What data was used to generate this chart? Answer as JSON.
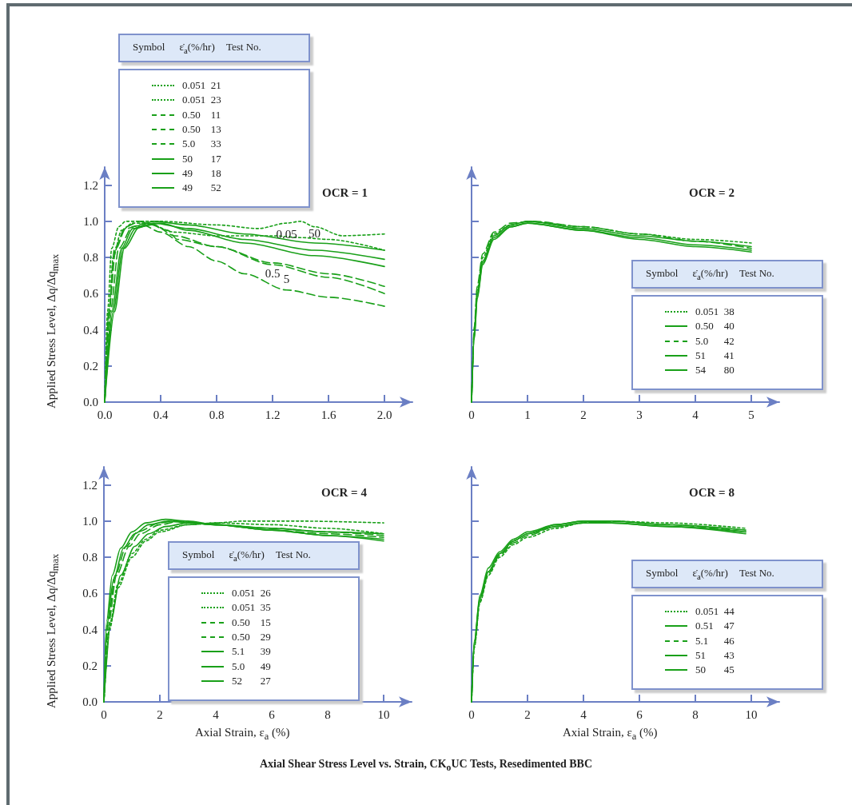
{
  "chart_data": [
    {
      "type": "line",
      "title": "OCR = 1",
      "ylabel": "Applied Stress Level, Δq/Δq$_{max}$",
      "legend": "top left",
      "legend_title": "Symbol\tε̇$_{a}$(%/hr)\tTest No.",
      "grid": false,
      "marker": "none",
      "xlim": [
        0,
        2.2
      ],
      "xticks": [
        {
          "value": 0,
          "label": "0.0"
        },
        {
          "value": 0.4,
          "label": "0.4"
        },
        {
          "value": 0.8,
          "label": "0.8"
        },
        {
          "value": 1.2,
          "label": "1.2"
        },
        {
          "value": 1.6,
          "label": "1.6"
        },
        {
          "value": 2,
          "label": "2.0"
        }
      ],
      "ylim": [
        0,
        1.3
      ],
      "yticks": [
        {
          "value": 0,
          "label": "0.0"
        },
        {
          "value": 0.2,
          "label": "0.2"
        },
        {
          "value": 0.4,
          "label": "0.4"
        },
        {
          "value": 0.6,
          "label": "0.6"
        },
        {
          "value": 0.8,
          "label": "0.8"
        },
        {
          "value": 1,
          "label": "1.0"
        },
        {
          "value": 1.2,
          "label": "1.2"
        }
      ],
      "annotations": [
        {
          "text": "0.05",
          "x": 1.3,
          "y": 0.99
        },
        {
          "text": "50",
          "x": 1.5,
          "y": 0.88
        },
        {
          "text": "0.5",
          "x": 1.2,
          "y": 0.77
        },
        {
          "text": "5",
          "x": 1.3,
          "y": 0.62
        }
      ],
      "series": [
        {
          "name": "0.051\t21",
          "color": "#19a019",
          "line_style": "dotted",
          "x": [
            0,
            0.02,
            0.05,
            0.1,
            0.15,
            0.4,
            0.8,
            1.1,
            1.3,
            1.4,
            1.5,
            1.7,
            2.0
          ],
          "values": [
            0,
            0.5,
            0.85,
            0.97,
            1.0,
            1.0,
            0.98,
            0.96,
            0.99,
            1.0,
            0.97,
            0.92,
            0.93
          ]
        },
        {
          "name": "0.051\t23",
          "color": "#19a019",
          "line_style": "dotted",
          "x": [
            0,
            0.03,
            0.06,
            0.12,
            0.2,
            0.3,
            0.5,
            0.8,
            1.2,
            1.4,
            1.6,
            2.0
          ],
          "values": [
            0,
            0.5,
            0.8,
            0.95,
            0.99,
            0.99,
            0.94,
            0.92,
            0.92,
            0.91,
            0.9,
            0.84
          ]
        },
        {
          "name": "0.50\t11",
          "color": "#19a019",
          "line_style": "dashed",
          "x": [
            0,
            0.03,
            0.07,
            0.15,
            0.25,
            0.35,
            0.5,
            0.8,
            1.2,
            1.6,
            2.0
          ],
          "values": [
            0,
            0.5,
            0.85,
            0.97,
            1.0,
            0.98,
            0.92,
            0.86,
            0.77,
            0.71,
            0.64
          ]
        },
        {
          "name": "0.50\t13",
          "color": "#19a019",
          "line_style": "dashed",
          "x": [
            0,
            0.03,
            0.08,
            0.15,
            0.3,
            0.45,
            0.52,
            0.8,
            1.2,
            1.6,
            2.0
          ],
          "values": [
            0,
            0.5,
            0.85,
            0.96,
            0.99,
            0.95,
            0.9,
            0.86,
            0.76,
            0.69,
            0.6
          ]
        },
        {
          "name": "5.0\t33",
          "color": "#19a019",
          "line_style": "dashed",
          "x": [
            0,
            0.04,
            0.1,
            0.2,
            0.27,
            0.4,
            0.6,
            0.8,
            1.0,
            1.3,
            1.6,
            2.0
          ],
          "values": [
            0,
            0.5,
            0.85,
            0.97,
            0.98,
            0.94,
            0.86,
            0.78,
            0.71,
            0.62,
            0.58,
            0.53
          ]
        },
        {
          "name": "50\t17",
          "color": "#19a019",
          "line_style": "solid",
          "x": [
            0,
            0.05,
            0.12,
            0.2,
            0.35,
            0.6,
            1.0,
            1.5,
            2.0
          ],
          "values": [
            0,
            0.5,
            0.85,
            0.96,
            1.0,
            0.98,
            0.93,
            0.88,
            0.84
          ]
        },
        {
          "name": "49\t18",
          "color": "#19a019",
          "line_style": "solid",
          "x": [
            0,
            0.06,
            0.13,
            0.22,
            0.35,
            0.6,
            1.0,
            1.5,
            2.0
          ],
          "values": [
            0,
            0.5,
            0.85,
            0.96,
            0.99,
            0.96,
            0.9,
            0.84,
            0.79
          ]
        },
        {
          "name": "49\t52",
          "color": "#19a019",
          "line_style": "solid",
          "x": [
            0,
            0.07,
            0.14,
            0.25,
            0.4,
            0.6,
            1.0,
            1.5,
            2.0
          ],
          "values": [
            0,
            0.5,
            0.85,
            0.97,
            0.99,
            0.95,
            0.88,
            0.81,
            0.75
          ]
        }
      ]
    },
    {
      "type": "line",
      "title": "OCR = 2",
      "legend": "bottom right",
      "legend_title": "Symbol\tε̇$_{a}$(%/hr)\tTest No.",
      "grid": false,
      "marker": "none",
      "tick_labels": "x",
      "xlim": [
        0,
        5.5
      ],
      "xticks": [
        0,
        1,
        2,
        3,
        4,
        5
      ],
      "ylim": [
        0,
        1.3
      ],
      "yticks": [
        0,
        0.2,
        0.4,
        0.6,
        0.8,
        1,
        1.2
      ],
      "series": [
        {
          "name": "0.051\t38",
          "color": "#19a019",
          "line_style": "dotted",
          "x": [
            0,
            0.05,
            0.1,
            0.2,
            0.4,
            0.7,
            1,
            2,
            3,
            4,
            5
          ],
          "values": [
            0,
            0.4,
            0.62,
            0.8,
            0.93,
            0.98,
            1.0,
            0.97,
            0.93,
            0.9,
            0.88
          ]
        },
        {
          "name": "0.50\t40",
          "color": "#19a019",
          "line_style": "solid",
          "x": [
            0,
            0.05,
            0.1,
            0.2,
            0.4,
            0.7,
            1,
            2,
            3,
            4,
            5
          ],
          "values": [
            0,
            0.38,
            0.6,
            0.78,
            0.92,
            0.98,
            1.0,
            0.96,
            0.92,
            0.89,
            0.86
          ]
        },
        {
          "name": "5.0\t42",
          "color": "#19a019",
          "line_style": "dashed",
          "x": [
            0,
            0.05,
            0.1,
            0.2,
            0.4,
            0.7,
            1.1,
            2,
            3,
            4,
            5
          ],
          "values": [
            0,
            0.42,
            0.64,
            0.82,
            0.94,
            0.99,
            1.0,
            0.97,
            0.93,
            0.89,
            0.85
          ]
        },
        {
          "name": "51\t41",
          "color": "#19a019",
          "line_style": "solid",
          "x": [
            0,
            0.05,
            0.1,
            0.2,
            0.4,
            0.7,
            1,
            2,
            3,
            4,
            5
          ],
          "values": [
            0,
            0.36,
            0.58,
            0.77,
            0.91,
            0.97,
            0.99,
            0.95,
            0.91,
            0.87,
            0.84
          ]
        },
        {
          "name": "54\t80",
          "color": "#19a019",
          "line_style": "solid",
          "x": [
            0,
            0.05,
            0.1,
            0.2,
            0.4,
            0.7,
            1,
            2,
            3,
            4,
            5
          ],
          "values": [
            0,
            0.35,
            0.57,
            0.76,
            0.9,
            0.97,
            0.99,
            0.95,
            0.9,
            0.86,
            0.83
          ]
        }
      ]
    },
    {
      "type": "line",
      "title": "OCR = 4",
      "ylabel": "Applied Stress Level, Δq/Δq$_{max}$",
      "xlabel": "Axial Strain, ε$_{a}$ (%)",
      "legend": "bottom",
      "legend_title": "Symbol\tε̇$_{a}$(%/hr)\tTest No.",
      "grid": false,
      "marker": "none",
      "xlim": [
        0,
        11
      ],
      "xticks": [
        0,
        2,
        4,
        6,
        8,
        10
      ],
      "ylim": [
        0,
        1.3
      ],
      "yticks": [
        {
          "value": 0,
          "label": "0.0"
        },
        {
          "value": 0.2,
          "label": "0.2"
        },
        {
          "value": 0.4,
          "label": "0.4"
        },
        {
          "value": 0.6,
          "label": "0.6"
        },
        {
          "value": 0.8,
          "label": "0.8"
        },
        {
          "value": 1,
          "label": "1.0"
        },
        {
          "value": 1.2,
          "label": "1.2"
        }
      ],
      "series": [
        {
          "name": "0.051\t26",
          "color": "#19a019",
          "line_style": "dotted",
          "x": [
            0,
            0.2,
            0.5,
            1,
            1.5,
            2,
            3,
            4,
            5,
            7,
            10
          ],
          "values": [
            0,
            0.4,
            0.63,
            0.8,
            0.89,
            0.94,
            0.98,
            0.99,
            1.0,
            1.0,
            0.99
          ]
        },
        {
          "name": "0.051\t35",
          "color": "#19a019",
          "line_style": "dotted",
          "x": [
            0,
            0.2,
            0.5,
            1,
            1.5,
            2,
            3,
            4,
            6,
            8,
            10
          ],
          "values": [
            0,
            0.42,
            0.65,
            0.82,
            0.9,
            0.95,
            0.98,
            0.99,
            0.98,
            0.96,
            0.93
          ]
        },
        {
          "name": "0.50\t15",
          "color": "#19a019",
          "line_style": "dashed",
          "x": [
            0,
            0.15,
            0.4,
            0.8,
            1.2,
            2,
            2.5,
            4,
            6,
            8,
            10
          ],
          "values": [
            0,
            0.45,
            0.7,
            0.86,
            0.94,
            0.99,
            1.0,
            0.98,
            0.96,
            0.94,
            0.92
          ]
        },
        {
          "name": "0.50\t29",
          "color": "#19a019",
          "line_style": "dashed",
          "x": [
            0,
            0.15,
            0.45,
            0.9,
            1.3,
            2,
            2.7,
            4,
            6,
            8,
            10
          ],
          "values": [
            0,
            0.42,
            0.7,
            0.86,
            0.93,
            0.98,
            1.0,
            0.98,
            0.95,
            0.93,
            0.91
          ]
        },
        {
          "name": "5.1\t39",
          "color": "#19a019",
          "line_style": "solid",
          "x": [
            0,
            0.1,
            0.3,
            0.6,
            1,
            1.5,
            2.2,
            3,
            4,
            6,
            8,
            10
          ],
          "values": [
            0,
            0.45,
            0.7,
            0.85,
            0.94,
            0.99,
            1.01,
            1.0,
            0.98,
            0.96,
            0.94,
            0.93
          ]
        },
        {
          "name": "5.0\t49",
          "color": "#19a019",
          "line_style": "solid",
          "x": [
            0,
            0.1,
            0.35,
            0.7,
            1.1,
            1.6,
            2.3,
            3,
            4,
            6,
            8,
            10
          ],
          "values": [
            0,
            0.42,
            0.68,
            0.85,
            0.93,
            0.98,
            1.0,
            0.99,
            0.98,
            0.95,
            0.92,
            0.9
          ]
        },
        {
          "name": "52\t27",
          "color": "#19a019",
          "line_style": "solid",
          "x": [
            0,
            0.25,
            0.6,
            1.1,
            1.6,
            2.2,
            3,
            4,
            6,
            8,
            10
          ],
          "values": [
            0,
            0.45,
            0.7,
            0.86,
            0.93,
            0.97,
            0.99,
            0.98,
            0.95,
            0.92,
            0.89
          ]
        }
      ]
    },
    {
      "type": "line",
      "title": "OCR = 8",
      "xlabel": "Axial Strain, ε$_{a}$ (%)",
      "legend": "bottom right",
      "legend_title": "Symbol\tε̇$_{a}$(%/hr)\tTest No.",
      "grid": false,
      "marker": "none",
      "tick_labels": "x",
      "xlim": [
        0,
        11
      ],
      "xticks": [
        0,
        2,
        4,
        6,
        8,
        10
      ],
      "ylim": [
        0,
        1.3
      ],
      "yticks": [
        0,
        0.2,
        0.4,
        0.6,
        0.8,
        1,
        1.2
      ],
      "annotations": [
        "Axial Shear Stress Level vs. Strain, CK$_{o}$UC Tests, Resedimented BBC"
      ],
      "series": [
        {
          "name": "0.051\t44",
          "color": "#19a019",
          "line_style": "dotted",
          "x": [
            0,
            0.1,
            0.3,
            0.6,
            1,
            1.5,
            2,
            3,
            4,
            5,
            7,
            9.8
          ],
          "values": [
            0,
            0.3,
            0.55,
            0.7,
            0.8,
            0.87,
            0.91,
            0.96,
            0.99,
            1.0,
            0.99,
            0.96
          ]
        },
        {
          "name": "0.51\t47",
          "color": "#19a019",
          "line_style": "solid",
          "x": [
            0,
            0.1,
            0.3,
            0.6,
            1,
            1.5,
            2,
            3,
            4,
            5,
            7,
            9.8
          ],
          "values": [
            0,
            0.33,
            0.58,
            0.72,
            0.82,
            0.89,
            0.93,
            0.98,
            1.0,
            1.0,
            0.98,
            0.95
          ]
        },
        {
          "name": "5.1\t46",
          "color": "#19a019",
          "line_style": "dashed",
          "x": [
            0,
            0.1,
            0.3,
            0.6,
            1,
            1.5,
            2,
            3,
            4,
            5,
            7,
            9.8
          ],
          "values": [
            0,
            0.31,
            0.56,
            0.71,
            0.81,
            0.88,
            0.92,
            0.97,
            0.99,
            1.0,
            0.98,
            0.94
          ]
        },
        {
          "name": "51\t43",
          "color": "#19a019",
          "line_style": "solid",
          "x": [
            0,
            0.1,
            0.3,
            0.6,
            1,
            1.5,
            2,
            3,
            4,
            5,
            7,
            9.8
          ],
          "values": [
            0,
            0.34,
            0.59,
            0.74,
            0.83,
            0.9,
            0.94,
            0.98,
            1.0,
            0.99,
            0.97,
            0.94
          ]
        },
        {
          "name": "50\t45",
          "color": "#19a019",
          "line_style": "solid",
          "x": [
            0,
            0.1,
            0.3,
            0.6,
            1,
            1.5,
            2,
            3,
            4,
            5,
            7,
            9.8
          ],
          "values": [
            0,
            0.32,
            0.57,
            0.72,
            0.82,
            0.89,
            0.93,
            0.97,
            0.99,
            0.99,
            0.97,
            0.93
          ]
        }
      ]
    }
  ]
}
